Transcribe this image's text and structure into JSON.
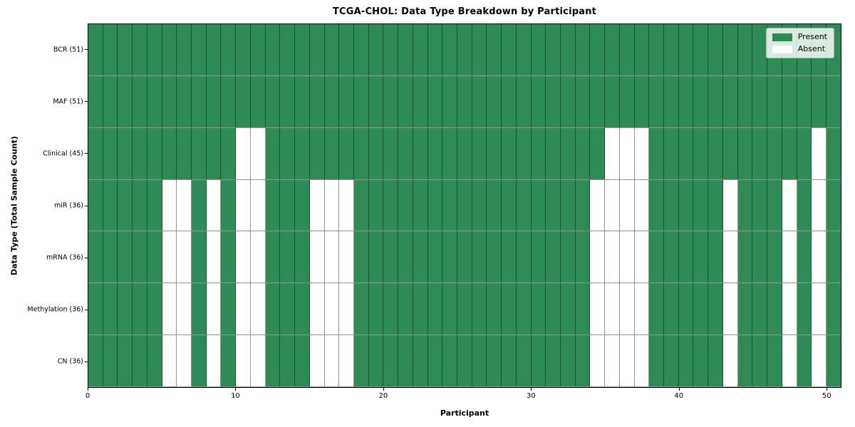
{
  "chart_data": {
    "type": "heatmap",
    "title": "TCGA-CHOL: Data Type Breakdown by Participant",
    "xlabel": "Participant",
    "ylabel": "Data Type (Total Sample Count)",
    "x_ticks": [
      0,
      10,
      20,
      30,
      40,
      50
    ],
    "x_range": [
      0,
      51
    ],
    "n_participants": 51,
    "grid": true,
    "colors": {
      "present": "#2e8b57",
      "absent": "#ffffff",
      "cell_edge": "rgba(0,0,0,0.42)"
    },
    "legend": {
      "position": "upper-right",
      "items": [
        {
          "label": "Present",
          "color": "#2e8b57"
        },
        {
          "label": "Absent",
          "color": "#ffffff"
        }
      ]
    },
    "rows": [
      {
        "label": "BCR (51)",
        "data_type": "BCR",
        "total_samples": 51,
        "absent_participants": []
      },
      {
        "label": "MAF (51)",
        "data_type": "MAF",
        "total_samples": 51,
        "absent_participants": []
      },
      {
        "label": "Clinical (45)",
        "data_type": "Clinical",
        "total_samples": 45,
        "absent_participants": [
          10,
          11,
          35,
          36,
          37,
          49
        ]
      },
      {
        "label": "miR (36)",
        "data_type": "miR",
        "total_samples": 36,
        "absent_participants": [
          5,
          6,
          8,
          10,
          11,
          15,
          16,
          17,
          34,
          35,
          36,
          37,
          43,
          47,
          49
        ]
      },
      {
        "label": "mRNA (36)",
        "data_type": "mRNA",
        "total_samples": 36,
        "absent_participants": [
          5,
          6,
          8,
          10,
          11,
          15,
          16,
          17,
          34,
          35,
          36,
          37,
          43,
          47,
          49
        ]
      },
      {
        "label": "Methylation (36)",
        "data_type": "Methylation",
        "total_samples": 36,
        "absent_participants": [
          5,
          6,
          8,
          10,
          11,
          15,
          16,
          17,
          34,
          35,
          36,
          37,
          43,
          47,
          49
        ]
      },
      {
        "label": "CN (36)",
        "data_type": "CN",
        "total_samples": 36,
        "absent_participants": [
          5,
          6,
          8,
          10,
          11,
          15,
          16,
          17,
          34,
          35,
          36,
          37,
          43,
          47,
          49
        ]
      }
    ]
  }
}
